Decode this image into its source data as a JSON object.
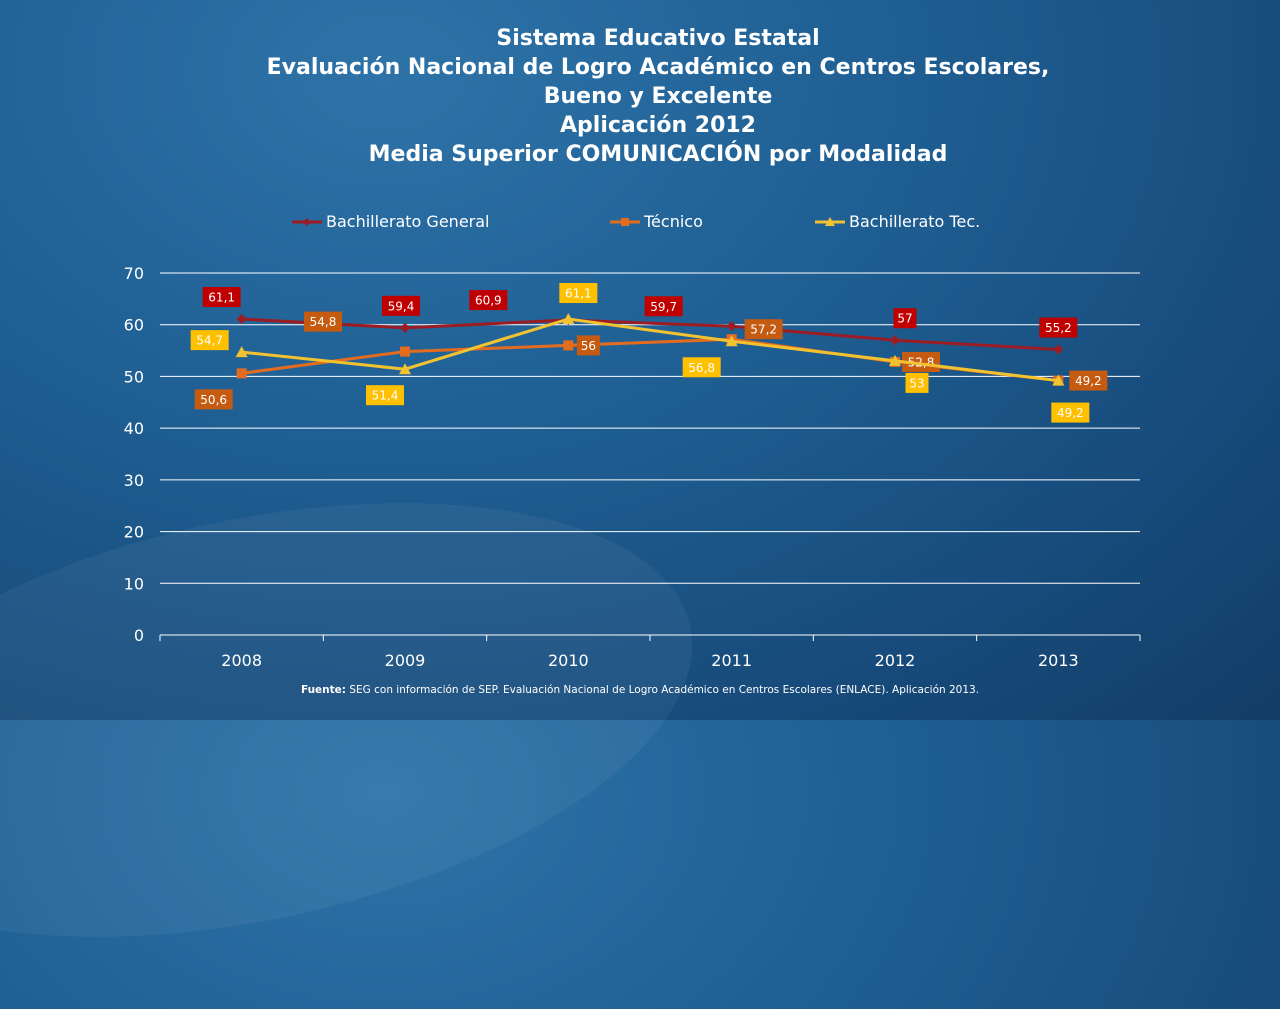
{
  "title_lines": [
    "Sistema Educativo Estatal",
    "Evaluación Nacional de Logro Académico en Centros Escolares,",
    "Bueno y Excelente",
    "Aplicación 2012",
    "Media Superior COMUNICACIÓN por Modalidad"
  ],
  "source": {
    "label": "Fuente:",
    "text": "SEG con información de SEP. Evaluación Nacional de Logro Académico en Centros Escolares (ENLACE). Aplicación 2013."
  },
  "chart_data": {
    "type": "line",
    "categories": [
      "2008",
      "2009",
      "2010",
      "2011",
      "2012",
      "2013"
    ],
    "ylim": [
      0,
      70
    ],
    "yticks": [
      0,
      10,
      20,
      30,
      40,
      50,
      60,
      70
    ],
    "grid": true,
    "legend_position": "top",
    "series": [
      {
        "name": "Bachillerato General",
        "values": [
          61.1,
          59.4,
          60.9,
          59.7,
          57,
          55.2
        ],
        "labels": [
          "61,1",
          "59,4",
          "60,9",
          "59,7",
          "57",
          "55,2"
        ],
        "color": "#9c1c23",
        "label_bg": "#c00000",
        "marker": "diamond"
      },
      {
        "name": "Técnico",
        "values": [
          50.6,
          54.8,
          56,
          57.2,
          52.8,
          49.2
        ],
        "labels": [
          "50,6",
          "54,8",
          "56",
          "57,2",
          "52,8",
          "49,2"
        ],
        "color": "#e46c1f",
        "label_bg": "#c55a11",
        "marker": "square"
      },
      {
        "name": "Bachillerato Tec.",
        "values": [
          54.7,
          51.4,
          61.1,
          56.8,
          53,
          49.2
        ],
        "labels": [
          "54,7",
          "51,4",
          "61,1",
          "56,8",
          "53",
          "49,2"
        ],
        "color": "#f2c230",
        "label_bg": "#ffc000",
        "marker": "triangle"
      }
    ]
  }
}
